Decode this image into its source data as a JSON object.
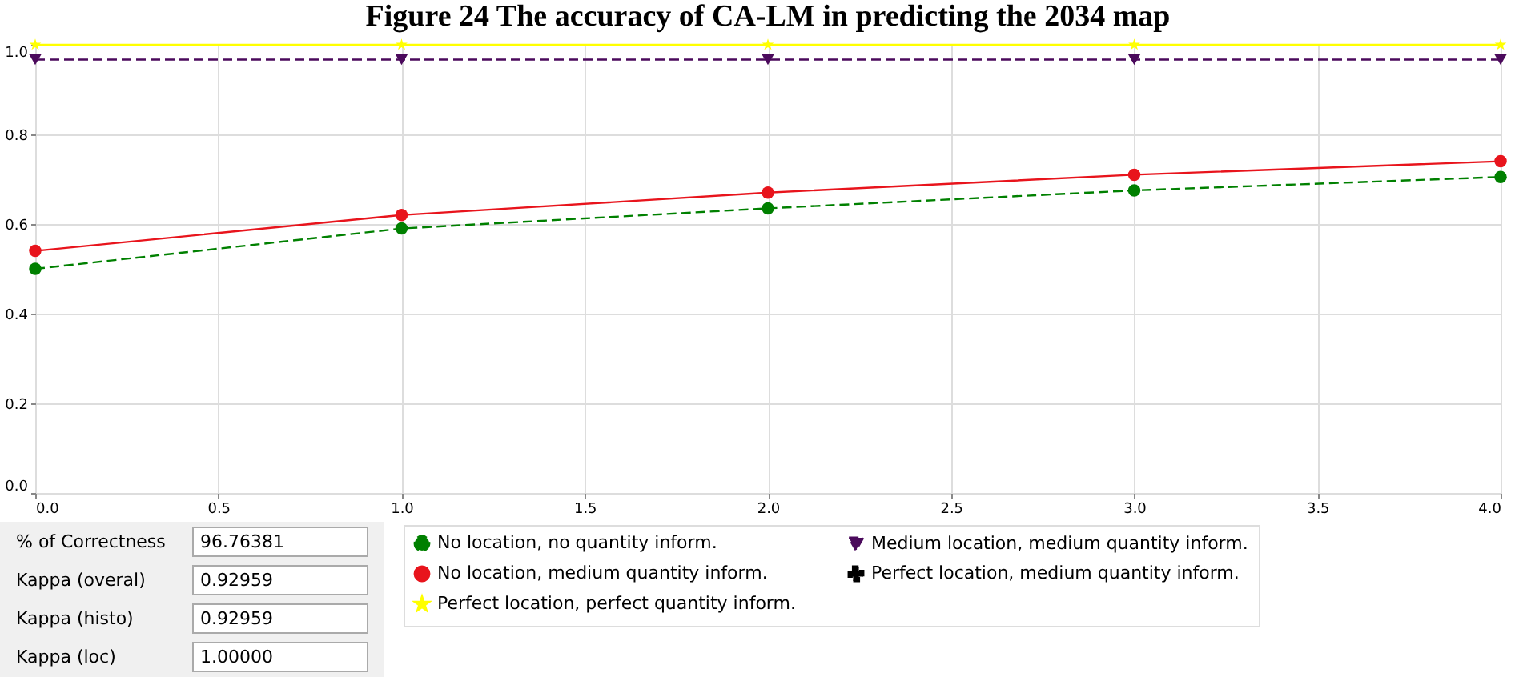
{
  "chart_data": {
    "type": "line",
    "title": "Figure 24 The accuracy of CA-LM in predicting the 2034 map",
    "x": [
      0,
      1,
      2,
      3,
      4
    ],
    "series": [
      {
        "name": "No location, no quantity inform.",
        "color": "#008000",
        "marker": "circle",
        "line_style": "dashed",
        "values": [
          0.5,
          0.59,
          0.635,
          0.675,
          0.705
        ]
      },
      {
        "name": "No location, medium quantity inform.",
        "color": "#e8141c",
        "marker": "circle",
        "line_style": "solid",
        "values": [
          0.54,
          0.62,
          0.67,
          0.71,
          0.74
        ]
      },
      {
        "name": "Perfect location, perfect quantity inform.",
        "color": "#ffff00",
        "marker": "star",
        "line_style": "solid",
        "values": [
          1.0,
          1.0,
          1.0,
          1.0,
          1.0
        ]
      },
      {
        "name": "Medium location, medium quantity inform.",
        "color": "#4b0a5c",
        "marker": "triangle",
        "line_style": "dashed",
        "values": [
          0.967,
          0.967,
          0.967,
          0.967,
          0.967
        ]
      },
      {
        "name": "Perfect location, medium quantity inform.",
        "color": "#000000",
        "marker": "cross",
        "line_style": "dashed",
        "values": [
          null,
          null,
          null,
          null,
          null
        ]
      }
    ],
    "xlim": [
      0,
      4
    ],
    "xticks": [
      {
        "value": 0,
        "label": "0.0"
      },
      0.5,
      {
        "value": 1,
        "label": "1.0"
      },
      1.5,
      {
        "value": 2,
        "label": "2.0"
      },
      2.5,
      {
        "value": 3,
        "label": "3.0"
      },
      3.5,
      {
        "value": 4,
        "label": "4.0"
      }
    ],
    "ylim": [
      0,
      1
    ],
    "yticks": [
      {
        "value": 0,
        "label": "0.0"
      },
      0.2,
      0.4,
      0.6,
      0.8,
      {
        "value": 1,
        "label": "1.0"
      }
    ],
    "grid": true,
    "legend": "bottom",
    "annotations": [
      "% of Correctness",
      "96.76381",
      "Kappa (overal)",
      "0.92959",
      "Kappa (histo)",
      "0.92959",
      "Kappa (loc)",
      "1.00000"
    ]
  }
}
